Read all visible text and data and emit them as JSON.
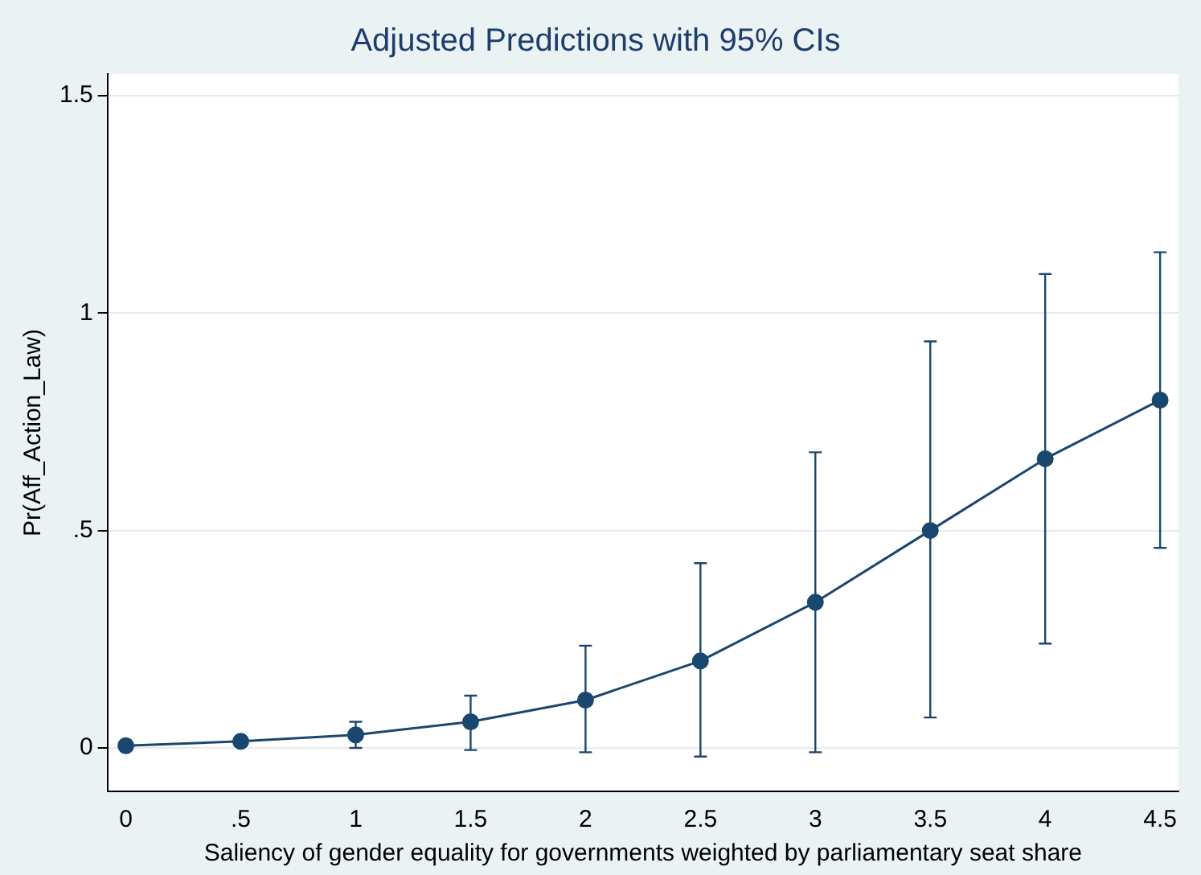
{
  "chart_data": {
    "type": "line",
    "title": "Adjusted Predictions with 95% CIs",
    "xlabel": "Saliency of gender equality for governments weighted by parliamentary seat share",
    "ylabel": "Pr(Aff_Action_Law)",
    "x": [
      0,
      0.5,
      1,
      1.5,
      2,
      2.5,
      3,
      3.5,
      4,
      4.5
    ],
    "series": [
      {
        "color": "#1a476f",
        "values": [
          0.005,
          0.015,
          0.03,
          0.06,
          0.11,
          0.2,
          0.335,
          0.5,
          0.665,
          0.8
        ],
        "errors": [
          [
            0,
            0.01
          ],
          [
            0.005,
            0.025
          ],
          [
            0,
            0.06
          ],
          [
            -0.005,
            0.12
          ],
          [
            -0.01,
            0.235
          ],
          [
            -0.02,
            0.425
          ],
          [
            -0.01,
            0.68
          ],
          [
            0.07,
            0.935
          ],
          [
            0.24,
            1.09
          ],
          [
            0.46,
            1.14
          ]
        ]
      }
    ],
    "xlim": [
      -0.08,
      4.58
    ],
    "xticks": [
      0,
      {
        "value": 0.5,
        "label": ".5"
      },
      1,
      1.5,
      2,
      2.5,
      3,
      3.5,
      4,
      4.5
    ],
    "ylim": [
      -0.1,
      1.55
    ],
    "yticks": [
      0,
      {
        "value": 0.5,
        "label": ".5"
      },
      1,
      1.5
    ],
    "grid": "y",
    "marker": "circle",
    "line_style": "solid",
    "legend": false
  }
}
